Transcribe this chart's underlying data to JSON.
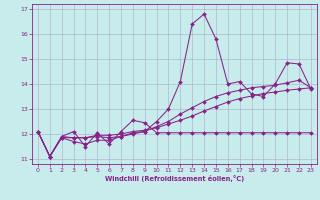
{
  "xlabel": "Windchill (Refroidissement éolien,°C)",
  "bg_color": "#c8ecec",
  "grid_color": "#aaaacc",
  "line_color": "#882288",
  "xlim": [
    -0.5,
    23.5
  ],
  "ylim": [
    10.8,
    17.2
  ],
  "xticks": [
    0,
    1,
    2,
    3,
    4,
    5,
    6,
    7,
    8,
    9,
    10,
    11,
    12,
    13,
    14,
    15,
    16,
    17,
    18,
    19,
    20,
    21,
    22,
    23
  ],
  "yticks": [
    11,
    12,
    13,
    14,
    15,
    16,
    17
  ],
  "series1_x": [
    0,
    1,
    2,
    3,
    4,
    5,
    6,
    7,
    8,
    9,
    10,
    11,
    12,
    13,
    14,
    15,
    16,
    17,
    18,
    19,
    20,
    21,
    22,
    23
  ],
  "series1_y": [
    12.1,
    11.1,
    11.9,
    12.1,
    11.5,
    12.05,
    11.6,
    12.1,
    12.55,
    12.45,
    12.05,
    12.05,
    12.05,
    12.05,
    12.05,
    12.05,
    12.05,
    12.05,
    12.05,
    12.05,
    12.05,
    12.05,
    12.05,
    12.05
  ],
  "series2_x": [
    0,
    1,
    2,
    3,
    4,
    5,
    6,
    7,
    8,
    9,
    10,
    11,
    12,
    13,
    14,
    15,
    16,
    17,
    18,
    19,
    20,
    21,
    22,
    23
  ],
  "series2_y": [
    12.1,
    11.1,
    11.9,
    11.85,
    11.85,
    11.9,
    11.85,
    11.9,
    12.0,
    12.1,
    12.5,
    13.0,
    14.1,
    16.4,
    16.8,
    15.8,
    14.0,
    14.1,
    13.6,
    13.5,
    14.0,
    14.85,
    14.8,
    13.8
  ],
  "series3_x": [
    0,
    1,
    2,
    3,
    4,
    5,
    6,
    7,
    8,
    9,
    10,
    11,
    12,
    13,
    14,
    15,
    16,
    17,
    18,
    19,
    20,
    21,
    22,
    23
  ],
  "series3_y": [
    12.1,
    11.1,
    11.85,
    11.7,
    11.6,
    11.75,
    11.75,
    11.9,
    12.05,
    12.1,
    12.3,
    12.5,
    12.8,
    13.05,
    13.3,
    13.5,
    13.65,
    13.75,
    13.85,
    13.9,
    13.95,
    14.05,
    14.15,
    13.85
  ],
  "series4_x": [
    0,
    1,
    2,
    3,
    4,
    5,
    6,
    7,
    8,
    9,
    10,
    11,
    12,
    13,
    14,
    15,
    16,
    17,
    18,
    19,
    20,
    21,
    22,
    23
  ],
  "series4_y": [
    12.1,
    11.1,
    11.85,
    11.85,
    11.85,
    11.95,
    11.95,
    12.0,
    12.1,
    12.15,
    12.25,
    12.4,
    12.55,
    12.72,
    12.92,
    13.1,
    13.28,
    13.42,
    13.52,
    13.62,
    13.68,
    13.75,
    13.8,
    13.85
  ]
}
